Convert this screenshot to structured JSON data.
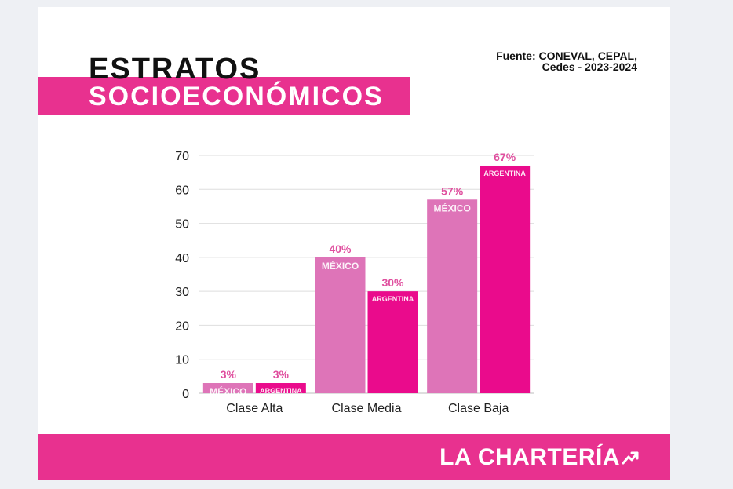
{
  "header": {
    "title_line1": "ESTRATOS",
    "title_line2": "SOCIOECONÓMICOS",
    "source_line1": "Fuente: CONEVAL, CEPAL,",
    "source_line2": "Cedes - 2023-2024"
  },
  "footer": {
    "brand": "LA CHARTERÍA",
    "brand_icon": "trend-arrow-icon"
  },
  "colors": {
    "mexico": "#de74b8",
    "argentina": "#ea0b8c",
    "label_mexico": "#e0509f",
    "label_argentina": "#e0509f",
    "band": "#e8318f"
  },
  "chart_data": {
    "type": "bar",
    "categories": [
      "Clase Alta",
      "Clase Media",
      "Clase Baja"
    ],
    "series": [
      {
        "name": "MÉXICO",
        "values": [
          3,
          40,
          57
        ],
        "labels": [
          "3%",
          "40%",
          "57%"
        ]
      },
      {
        "name": "ARGENTINA",
        "values": [
          3,
          30,
          67
        ],
        "labels": [
          "3%",
          "30%",
          "67%"
        ]
      }
    ],
    "yticks": [
      0,
      10,
      20,
      30,
      40,
      50,
      60,
      70
    ],
    "ylim": [
      0,
      70
    ],
    "grid": true,
    "legend": "none"
  }
}
